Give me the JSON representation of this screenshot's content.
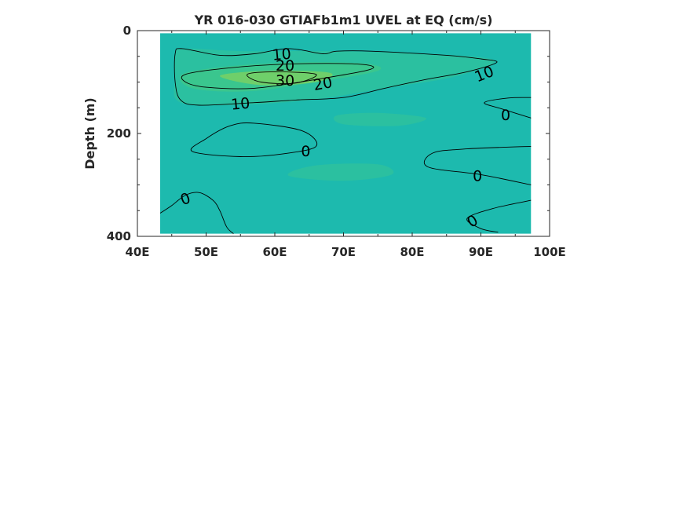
{
  "chart_data": {
    "type": "heatmap",
    "subtype": "filled-contour",
    "title": "YR 016-030 GTIAFb1m1 UVEL at EQ (cm/s)",
    "xlabel": "",
    "ylabel": "Depth (m)",
    "xlim": [
      40,
      100
    ],
    "ylim": [
      0,
      400
    ],
    "y_reversed": true,
    "x_ticks": [
      {
        "value": 40,
        "label": "40E"
      },
      {
        "value": 50,
        "label": "50E"
      },
      {
        "value": 60,
        "label": "60E"
      },
      {
        "value": 70,
        "label": "70E"
      },
      {
        "value": 80,
        "label": "80E"
      },
      {
        "value": 90,
        "label": "90E"
      },
      {
        "value": 100,
        "label": "100E"
      }
    ],
    "y_ticks": [
      {
        "value": 0,
        "label": "0"
      },
      {
        "value": 200,
        "label": "200"
      },
      {
        "value": 400,
        "label": "400"
      }
    ],
    "data_extent": {
      "x": [
        43.3,
        97.3
      ],
      "y": [
        5,
        395
      ]
    },
    "colors": {
      "background_field": "#1dbaae",
      "weak_positive": "#2bc0a0",
      "moderate_positive": "#3ac68e",
      "core_max": "#6fcf6a",
      "contour_line": "#000000"
    },
    "contour_levels": [
      0,
      10,
      20,
      30
    ],
    "contours": [
      {
        "level": 10,
        "points": [
          [
            46.5,
            35
          ],
          [
            52,
            48
          ],
          [
            57,
            45
          ],
          [
            62,
            35
          ],
          [
            67,
            45
          ],
          [
            69,
            40
          ],
          [
            74,
            40
          ],
          [
            85,
            48
          ],
          [
            90,
            55
          ],
          [
            92.3,
            62
          ],
          [
            88,
            80
          ],
          [
            82,
            95
          ],
          [
            76,
            112
          ],
          [
            70,
            130
          ],
          [
            63,
            135
          ],
          [
            57,
            140
          ],
          [
            49,
            145
          ],
          [
            46.3,
            135
          ],
          [
            45.5,
            100
          ],
          [
            45.5,
            45
          ]
        ],
        "closed": true
      },
      {
        "level": 20,
        "points": [
          [
            47,
            85
          ],
          [
            53,
            73
          ],
          [
            62,
            65
          ],
          [
            72,
            65
          ],
          [
            74,
            75
          ],
          [
            66,
            95
          ],
          [
            57,
            112
          ],
          [
            50,
            110
          ],
          [
            47,
            100
          ]
        ],
        "closed": true
      },
      {
        "level": 30,
        "points": [
          [
            56,
            85
          ],
          [
            60,
            80
          ],
          [
            66,
            85
          ],
          [
            63,
            102
          ],
          [
            58,
            100
          ]
        ],
        "closed": true
      },
      {
        "level": 0,
        "points": [
          [
            53.5,
            185
          ],
          [
            57,
            180
          ],
          [
            64,
            195
          ],
          [
            66,
            225
          ],
          [
            61,
            240
          ],
          [
            55,
            245
          ],
          [
            48,
            235
          ],
          [
            50,
            210
          ]
        ],
        "closed": true
      },
      {
        "level": 0,
        "points": [
          [
            43.3,
            355
          ],
          [
            45,
            340
          ],
          [
            47,
            320
          ],
          [
            49,
            315
          ],
          [
            51,
            330
          ],
          [
            52,
            350
          ],
          [
            53,
            382
          ],
          [
            54,
            395
          ]
        ],
        "closed": false
      },
      {
        "level": 0,
        "points": [
          [
            97.3,
            130
          ],
          [
            94,
            131
          ],
          [
            90.5,
            140
          ],
          [
            93,
            152
          ],
          [
            97.3,
            170
          ]
        ],
        "closed": false
      },
      {
        "level": 0,
        "points": [
          [
            97.3,
            225
          ],
          [
            88,
            230
          ],
          [
            83,
            238
          ],
          [
            82.3,
            265
          ],
          [
            90,
            280
          ],
          [
            97.3,
            300
          ]
        ],
        "closed": false
      },
      {
        "level": 0,
        "points": [
          [
            97.3,
            330
          ],
          [
            92,
            345
          ],
          [
            88,
            365
          ],
          [
            90,
            385
          ],
          [
            92.5,
            392
          ]
        ],
        "closed": false
      }
    ],
    "contour_labels": [
      {
        "text": "10",
        "x": 61,
        "y": 47,
        "rotation": -5
      },
      {
        "text": "20",
        "x": 61.5,
        "y": 69,
        "rotation": 0
      },
      {
        "text": "30",
        "x": 61.5,
        "y": 98,
        "rotation": 0
      },
      {
        "text": "20",
        "x": 67,
        "y": 104,
        "rotation": -10
      },
      {
        "text": "10",
        "x": 55,
        "y": 143,
        "rotation": -5
      },
      {
        "text": "10",
        "x": 90.5,
        "y": 85,
        "rotation": -22
      },
      {
        "text": "0",
        "x": 64.5,
        "y": 235,
        "rotation": 0
      },
      {
        "text": "0",
        "x": 93.6,
        "y": 165,
        "rotation": 0
      },
      {
        "text": "0",
        "x": 89.5,
        "y": 283,
        "rotation": 0
      },
      {
        "text": "0",
        "x": 47,
        "y": 328,
        "rotation": -20
      },
      {
        "text": "0",
        "x": 88.8,
        "y": 371,
        "rotation": -30
      }
    ],
    "fill_regions": [
      {
        "color": "weak_positive",
        "points": [
          [
            45.5,
            45
          ],
          [
            47,
            35
          ],
          [
            56,
            40
          ],
          [
            70,
            40
          ],
          [
            86,
            48
          ],
          [
            92,
            60
          ],
          [
            86,
            90
          ],
          [
            76,
            112
          ],
          [
            65,
            135
          ],
          [
            53,
            145
          ],
          [
            46,
            138
          ],
          [
            45.5,
            90
          ]
        ]
      },
      {
        "color": "moderate_positive",
        "points": [
          [
            46.5,
            85
          ],
          [
            53,
            70
          ],
          [
            63,
            62
          ],
          [
            73,
            64
          ],
          [
            75,
            78
          ],
          [
            66,
            100
          ],
          [
            56,
            118
          ],
          [
            48,
            112
          ]
        ]
      },
      {
        "color": "core_max",
        "points": [
          [
            52,
            88
          ],
          [
            59,
            78
          ],
          [
            68,
            82
          ],
          [
            66,
            100
          ],
          [
            58,
            106
          ]
        ]
      },
      {
        "color": "weak_positive",
        "points": [
          [
            62,
            282
          ],
          [
            66,
            262
          ],
          [
            75,
            260
          ],
          [
            77,
            280
          ],
          [
            70,
            292
          ]
        ]
      },
      {
        "color": "weak_positive",
        "points": [
          [
            69,
            165
          ],
          [
            75,
            160
          ],
          [
            82,
            170
          ],
          [
            78,
            185
          ],
          [
            70,
            182
          ]
        ]
      }
    ]
  }
}
